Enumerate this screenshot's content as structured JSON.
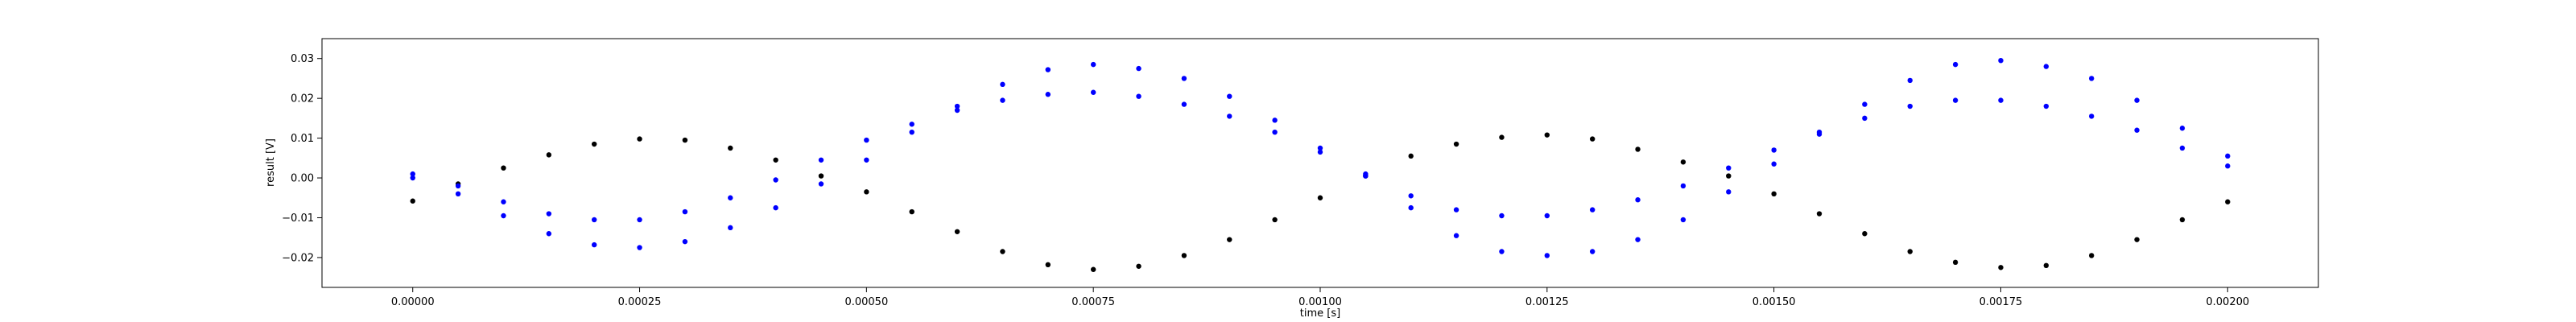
{
  "chart_data": {
    "type": "scatter",
    "title": "",
    "xlabel": "time [s]",
    "ylabel": "result [V]",
    "xlim": [
      -0.0001,
      0.0021
    ],
    "ylim": [
      -0.0275,
      0.035
    ],
    "grid": false,
    "xticks": [
      0.0,
      0.00025,
      0.0005,
      0.00075,
      0.001,
      0.00125,
      0.0015,
      0.00175,
      0.002
    ],
    "xtick_labels": [
      "0.00000",
      "0.00025",
      "0.00050",
      "0.00075",
      "0.00100",
      "0.00125",
      "0.00150",
      "0.00175",
      "0.00200"
    ],
    "yticks": [
      -0.02,
      -0.01,
      0.0,
      0.01,
      0.02,
      0.03
    ],
    "ytick_labels": [
      "−0.02",
      "−0.01",
      "0.00",
      "0.01",
      "0.02",
      "0.03"
    ],
    "series": [
      {
        "color": "#000000",
        "x": [
          0.0,
          5e-05,
          0.0001,
          0.00015,
          0.0002,
          0.00025,
          0.0003,
          0.00035,
          0.0004,
          0.00045,
          0.0005,
          0.00055,
          0.0006,
          0.00065,
          0.0007,
          0.00075,
          0.0008,
          0.00085,
          0.0009,
          0.00095,
          0.001,
          0.00105,
          0.0011,
          0.00115,
          0.0012,
          0.00125,
          0.0013,
          0.00135,
          0.0014,
          0.00145,
          0.0015,
          0.00155,
          0.0016,
          0.00165,
          0.0017,
          0.00175,
          0.0018,
          0.00185,
          0.0019,
          0.00195,
          0.002
        ],
        "y": [
          -0.0058,
          -0.0015,
          0.0025,
          0.0058,
          0.0085,
          0.0098,
          0.0095,
          0.0075,
          0.0045,
          0.0005,
          -0.0035,
          -0.0085,
          -0.0135,
          -0.0185,
          -0.0218,
          -0.023,
          -0.0222,
          -0.0195,
          -0.0155,
          -0.0105,
          -0.005,
          0.0005,
          0.0055,
          0.0085,
          0.0102,
          0.0108,
          0.0098,
          0.0072,
          0.004,
          0.0005,
          -0.004,
          -0.009,
          -0.014,
          -0.0185,
          -0.0212,
          -0.0225,
          -0.022,
          -0.0195,
          -0.0155,
          -0.0105,
          -0.006
        ]
      },
      {
        "color": "#0000ff",
        "x": [
          0.0,
          5e-05,
          0.0001,
          0.00015,
          0.0002,
          0.00025,
          0.0003,
          0.00035,
          0.0004,
          0.00045,
          0.0005,
          0.00055,
          0.0006,
          0.00065,
          0.0007,
          0.00075,
          0.0008,
          0.00085,
          0.0009,
          0.00095,
          0.001,
          0.00105,
          0.0011,
          0.00115,
          0.0012,
          0.00125,
          0.0013,
          0.00135,
          0.0014,
          0.00145,
          0.0015,
          0.00155,
          0.0016,
          0.00165,
          0.0017,
          0.00175,
          0.0018,
          0.00185,
          0.0019,
          0.00195,
          0.002
        ],
        "y": [
          0.001,
          -0.002,
          -0.006,
          -0.009,
          -0.0105,
          -0.0105,
          -0.0085,
          -0.005,
          -0.0005,
          0.0045,
          0.0095,
          0.0135,
          0.017,
          0.0195,
          0.021,
          0.0215,
          0.0205,
          0.0185,
          0.0155,
          0.0115,
          0.0065,
          0.001,
          -0.0045,
          -0.008,
          -0.0095,
          -0.0095,
          -0.008,
          -0.0055,
          -0.002,
          0.0025,
          0.007,
          0.0115,
          0.015,
          0.018,
          0.0195,
          0.0195,
          0.018,
          0.0155,
          0.012,
          0.0075,
          0.003
        ]
      },
      {
        "color": "#0000ff",
        "x": [
          0.0,
          5e-05,
          0.0001,
          0.00015,
          0.0002,
          0.00025,
          0.0003,
          0.00035,
          0.0004,
          0.00045,
          0.0005,
          0.00055,
          0.0006,
          0.00065,
          0.0007,
          0.00075,
          0.0008,
          0.00085,
          0.0009,
          0.00095,
          0.001,
          0.00105,
          0.0011,
          0.00115,
          0.0012,
          0.00125,
          0.0013,
          0.00135,
          0.0014,
          0.00145,
          0.0015,
          0.00155,
          0.0016,
          0.00165,
          0.0017,
          0.00175,
          0.0018,
          0.00185,
          0.0019,
          0.00195,
          0.002
        ],
        "y": [
          0.0,
          -0.004,
          -0.0095,
          -0.014,
          -0.0168,
          -0.0175,
          -0.016,
          -0.0125,
          -0.0075,
          -0.0015,
          0.0045,
          0.0115,
          0.018,
          0.0235,
          0.0272,
          0.0285,
          0.0275,
          0.025,
          0.0205,
          0.0145,
          0.0075,
          0.0005,
          -0.0075,
          -0.0145,
          -0.0185,
          -0.0195,
          -0.0185,
          -0.0155,
          -0.0105,
          -0.0035,
          0.0035,
          0.011,
          0.0185,
          0.0245,
          0.0285,
          0.0295,
          0.028,
          0.025,
          0.0195,
          0.0125,
          0.0055
        ]
      }
    ]
  }
}
